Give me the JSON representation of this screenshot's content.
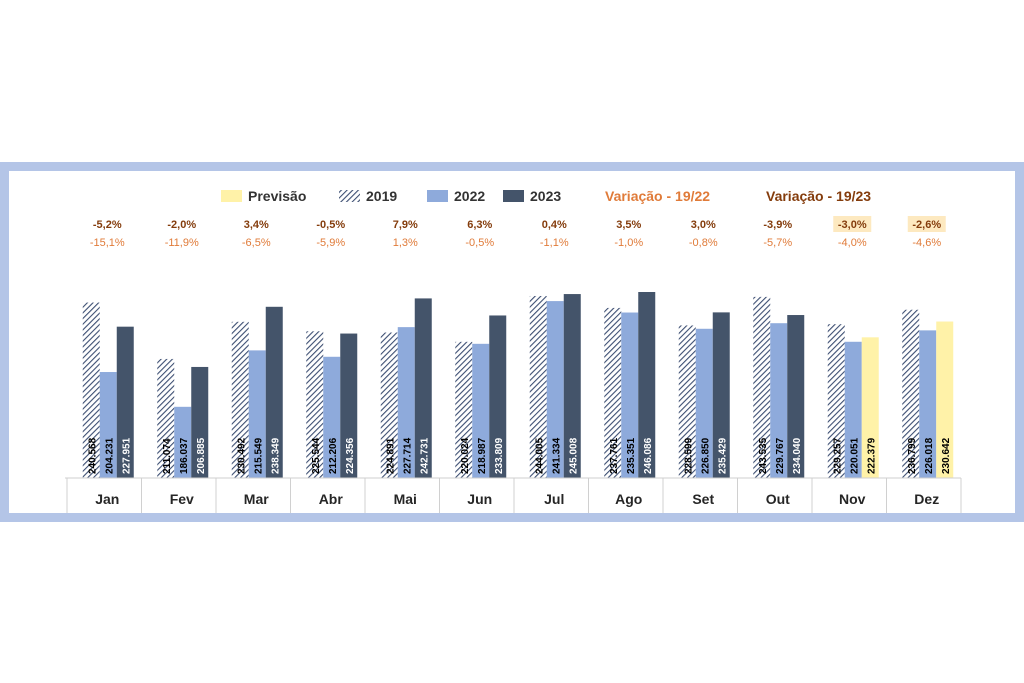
{
  "chart_data": {
    "type": "bar",
    "categories": [
      "Jan",
      "Fev",
      "Mar",
      "Abr",
      "Mai",
      "Jun",
      "Jul",
      "Ago",
      "Set",
      "Out",
      "Nov",
      "Dez"
    ],
    "series": [
      {
        "name": "2019",
        "values": [
          240568,
          211074,
          230492,
          225544,
          224891,
          220024,
          244005,
          237761,
          228599,
          243535,
          229257,
          236799
        ],
        "labels": [
          "240.568",
          "211.074",
          "230.492",
          "225.544",
          "224.891",
          "220.024",
          "244.005",
          "237.761",
          "228.599",
          "243.535",
          "229.257",
          "236.799"
        ],
        "color": "#3c4e72",
        "hatched": true
      },
      {
        "name": "2022",
        "values": [
          204231,
          186037,
          215549,
          212206,
          227714,
          218987,
          241334,
          235351,
          226850,
          229767,
          220051,
          226018
        ],
        "labels": [
          "204.231",
          "186.037",
          "215.549",
          "212.206",
          "227.714",
          "218.987",
          "241.334",
          "235.351",
          "226.850",
          "229.767",
          "220.051",
          "226.018"
        ],
        "color": "#8eaadb"
      },
      {
        "name": "2023",
        "values": [
          227951,
          206885,
          238349,
          224356,
          242731,
          233809,
          245008,
          246086,
          235429,
          234040,
          222379,
          230642
        ],
        "labels": [
          "227.951",
          "206.885",
          "238.349",
          "224.356",
          "242.731",
          "233.809",
          "245.008",
          "246.086",
          "235.429",
          "234.040",
          "222.379",
          "230.642"
        ],
        "color": "#44546a",
        "forecast_from_index": 10
      }
    ],
    "legend": [
      "Previsão",
      "2019",
      "2022",
      "2023",
      "Variação - 19/22",
      "Variação - 19/23"
    ],
    "legend_placement": "top",
    "variation_19_23": [
      "-5,2%",
      "-2,0%",
      "3,4%",
      "-0,5%",
      "7,9%",
      "6,3%",
      "0,4%",
      "3,5%",
      "3,0%",
      "-3,9%",
      "-3,0%",
      "-2,6%"
    ],
    "variation_19_22": [
      "-15,1%",
      "-11,9%",
      "-6,5%",
      "-5,9%",
      "1,3%",
      "-0,5%",
      "-1,1%",
      "-1,0%",
      "-0,8%",
      "-5,7%",
      "-4,0%",
      "-4,6%"
    ],
    "forecast_color": "#fff2a8",
    "highlight_color": "#fde9c0",
    "ylim": [
      0,
      260000
    ],
    "grid": false
  }
}
